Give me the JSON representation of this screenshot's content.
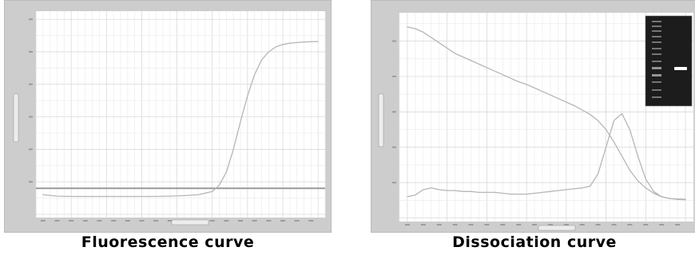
{
  "captions": {
    "left": "Fluorescence curve",
    "right": "Dissociation curve"
  },
  "colors": {
    "frame": "#cdcdcd",
    "frame_border": "#a8a8a8",
    "plot_bg": "#ffffff",
    "grid_major": "#d4d4d4",
    "grid_minor": "#ececec",
    "curve": "#b6b6b6",
    "threshold_line": "#8f959c",
    "caption_text": "#000000",
    "gel_bg": "#1c1c1c",
    "gel_ladder_band": "#9a9a9a",
    "gel_sample_band": "#ffffff"
  },
  "chart_data": [
    {
      "type": "line",
      "name": "fluorescence",
      "title": "Fluorescence curve",
      "x": [
        1,
        3,
        5,
        7,
        9,
        11,
        13,
        15,
        17,
        19,
        21,
        23,
        25,
        26,
        27,
        28,
        29,
        30,
        31,
        32,
        33,
        34,
        35,
        36,
        37,
        38,
        39,
        40
      ],
      "series": [
        {
          "values": [
            0.02,
            0.012,
            0.01,
            0.01,
            0.01,
            0.01,
            0.01,
            0.01,
            0.01,
            0.012,
            0.015,
            0.02,
            0.04,
            0.08,
            0.16,
            0.3,
            0.47,
            0.63,
            0.76,
            0.85,
            0.9,
            0.93,
            0.945,
            0.953,
            0.957,
            0.96,
            0.962,
            0.963
          ]
        }
      ],
      "threshold": 0.06,
      "xlim": [
        0,
        41
      ],
      "ylim": [
        -0.12,
        1.15
      ],
      "x_grid_step": 1,
      "y_grid_step": 0.1,
      "grid": true,
      "tick_labels_legible": false
    },
    {
      "type": "line",
      "name": "dissociation",
      "title": "Dissociation curve",
      "x": [
        60,
        61,
        62,
        63,
        64,
        65,
        66,
        67,
        68,
        69,
        70,
        71,
        72,
        73,
        74,
        75,
        76,
        77,
        78,
        79,
        80,
        81,
        82,
        83,
        84,
        85,
        86,
        87,
        88,
        89,
        90,
        91,
        92,
        93,
        94,
        95
      ],
      "series": [
        {
          "values": [
            0.98,
            0.97,
            0.95,
            0.92,
            0.89,
            0.86,
            0.83,
            0.81,
            0.79,
            0.77,
            0.75,
            0.73,
            0.71,
            0.69,
            0.67,
            0.655,
            0.635,
            0.615,
            0.595,
            0.575,
            0.555,
            0.535,
            0.51,
            0.485,
            0.45,
            0.4,
            0.33,
            0.25,
            0.17,
            0.11,
            0.07,
            0.04,
            0.02,
            0.01,
            0.005,
            0.003
          ]
        },
        {
          "values": [
            0.02,
            0.03,
            0.06,
            0.07,
            0.06,
            0.055,
            0.055,
            0.05,
            0.05,
            0.045,
            0.045,
            0.045,
            0.04,
            0.035,
            0.035,
            0.035,
            0.04,
            0.045,
            0.05,
            0.055,
            0.06,
            0.065,
            0.07,
            0.08,
            0.15,
            0.3,
            0.45,
            0.49,
            0.4,
            0.25,
            0.12,
            0.05,
            0.02,
            0.01,
            0.008,
            0.006
          ]
        }
      ],
      "xlim": [
        59,
        96
      ],
      "ylim": [
        -0.12,
        1.06
      ],
      "x_grid_step": 1,
      "y_grid_step": 0.1,
      "grid": true,
      "tick_labels_legible": false
    }
  ]
}
